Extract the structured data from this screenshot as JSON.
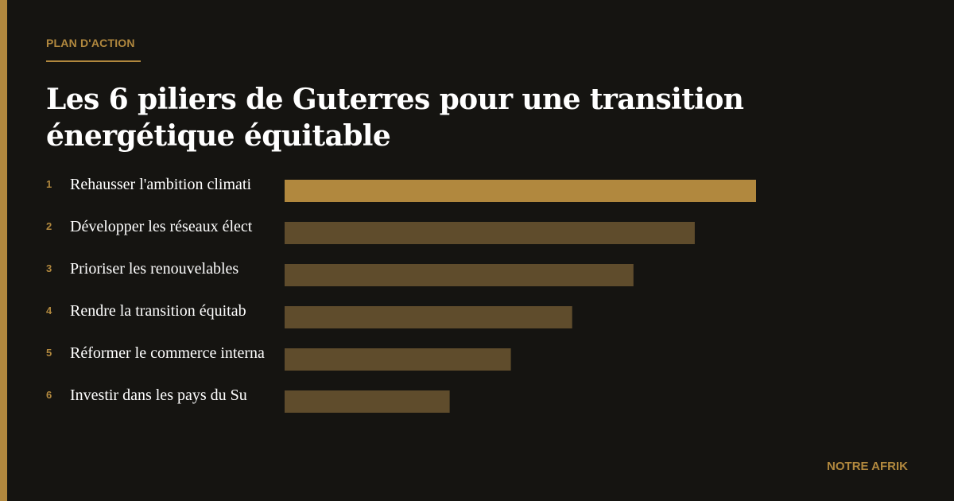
{
  "header": {
    "kicker": "PLAN D'ACTION",
    "title": "Les 6 piliers de Guterres pour une transition énergétique équitable"
  },
  "footer": {
    "brand": "NOTRE AFRIK"
  },
  "colors": {
    "accent": "#b1883e",
    "bar_highlight": "#b1883e",
    "bar_default": "#5f4c2c",
    "background": "#151411",
    "text": "#ffffff"
  },
  "chart_data": {
    "type": "bar",
    "orientation": "horizontal",
    "ranks": [
      "1",
      "2",
      "3",
      "4",
      "5",
      "6"
    ],
    "categories": [
      "Rehausser l'ambition climati",
      "Développer les réseaux élect",
      "Prioriser les renouvelables",
      "Rendre la transition équitab",
      "Réformer le commerce interna",
      "Investir dans les pays du Su"
    ],
    "values": [
      6,
      5.22,
      4.44,
      3.66,
      2.88,
      2.1
    ],
    "highlight_index": 0,
    "xlim": [
      0,
      6
    ],
    "grid": false,
    "axes_visible": false,
    "legend": "none"
  }
}
